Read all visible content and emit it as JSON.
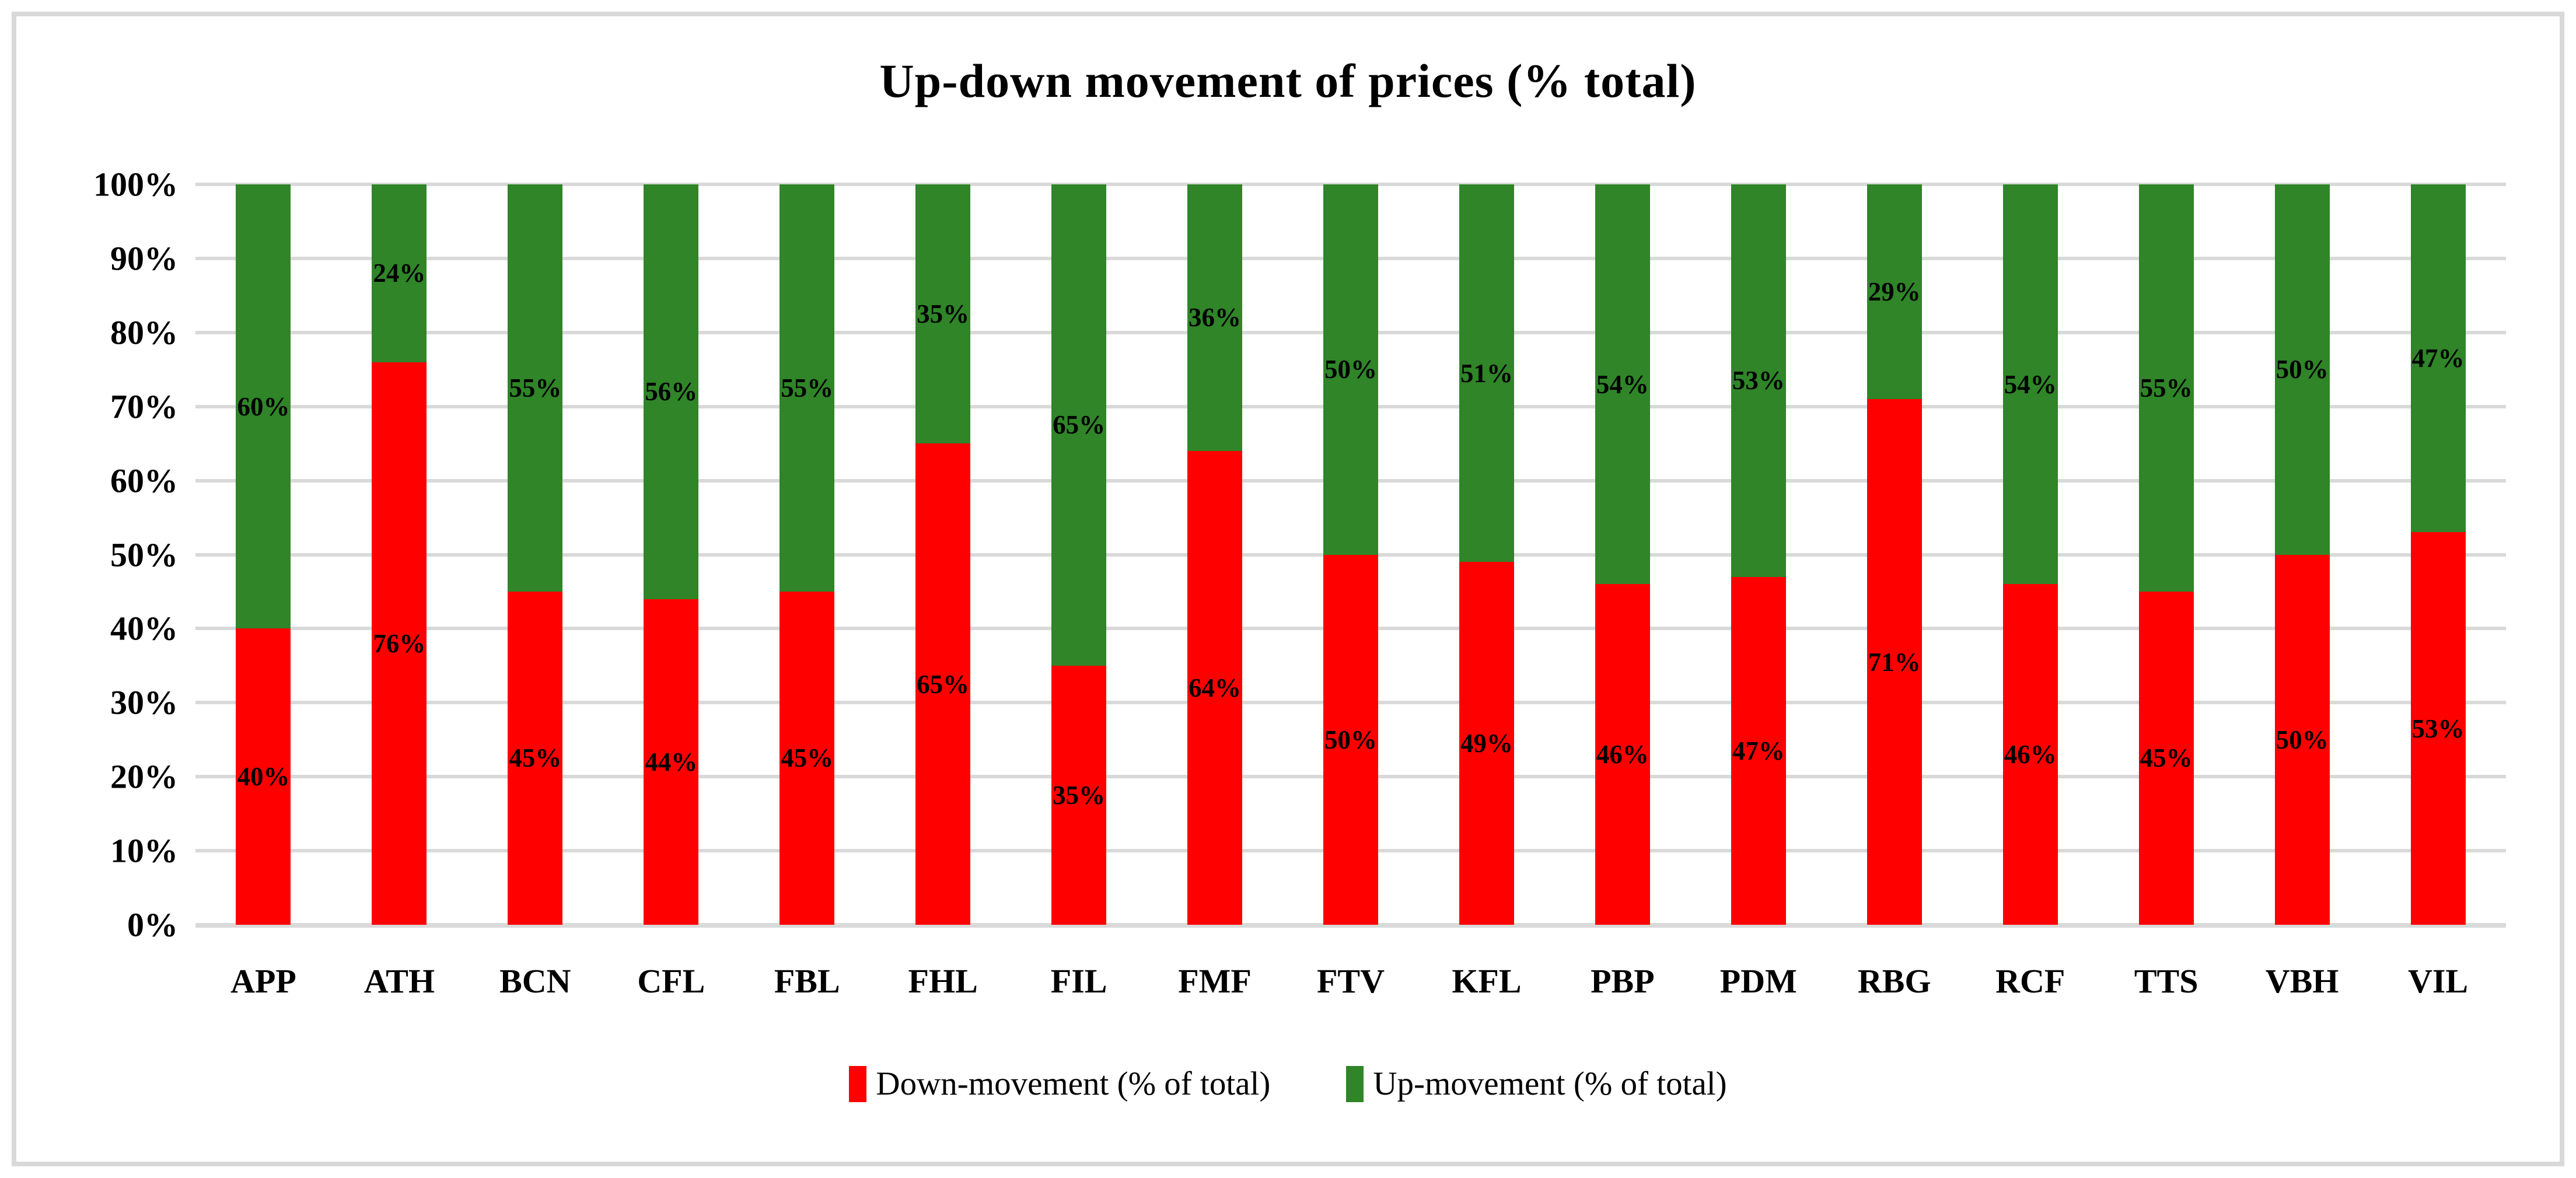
{
  "figure": {
    "background": "#FFFFFF",
    "border_color": "#D9D9D9",
    "text_color": "#000000"
  },
  "chart_data": {
    "type": "bar",
    "stacked": true,
    "orientation": "vertical",
    "title": "Up-down movement of prices (% total)",
    "categories": [
      "APP",
      "ATH",
      "BCN",
      "CFL",
      "FBL",
      "FHL",
      "FIL",
      "FMF",
      "FTV",
      "KFL",
      "PBP",
      "PDM",
      "RBG",
      "RCF",
      "TTS",
      "VBH",
      "VIL"
    ],
    "series": [
      {
        "name": "Down-movement (% of total)",
        "color": "#FF0000",
        "values": [
          40,
          76,
          45,
          44,
          45,
          65,
          35,
          64,
          50,
          49,
          46,
          47,
          71,
          46,
          45,
          50,
          53
        ],
        "labels": [
          "40%",
          "76%",
          "45%",
          "44%",
          "45%",
          "65%",
          "35%",
          "64%",
          "50%",
          "49%",
          "46%",
          "47%",
          "71%",
          "46%",
          "45%",
          "50%",
          "53%"
        ]
      },
      {
        "name": "Up-movement (% of total)",
        "color": "#2F8528",
        "values": [
          60,
          24,
          55,
          56,
          55,
          35,
          65,
          36,
          50,
          51,
          54,
          53,
          29,
          54,
          55,
          50,
          47
        ],
        "labels": [
          "60%",
          "24%",
          "55%",
          "56%",
          "55%",
          "35%",
          "65%",
          "36%",
          "50%",
          "51%",
          "54%",
          "53%",
          "29%",
          "54%",
          "55%",
          "50%",
          "47%"
        ]
      }
    ],
    "data_label_position": "center",
    "y_axis": {
      "min": 0,
      "max": 100,
      "step": 10,
      "ticks": [
        "0%",
        "10%",
        "20%",
        "30%",
        "40%",
        "50%",
        "60%",
        "70%",
        "80%",
        "90%",
        "100%"
      ],
      "grid": true,
      "grid_color": "#D9D9D9"
    },
    "legend": {
      "position": "bottom",
      "entries": [
        {
          "label": "Down-movement (% of total)",
          "color": "#FF0000"
        },
        {
          "label": "Up-movement (% of total)",
          "color": "#2F8528"
        }
      ]
    }
  }
}
